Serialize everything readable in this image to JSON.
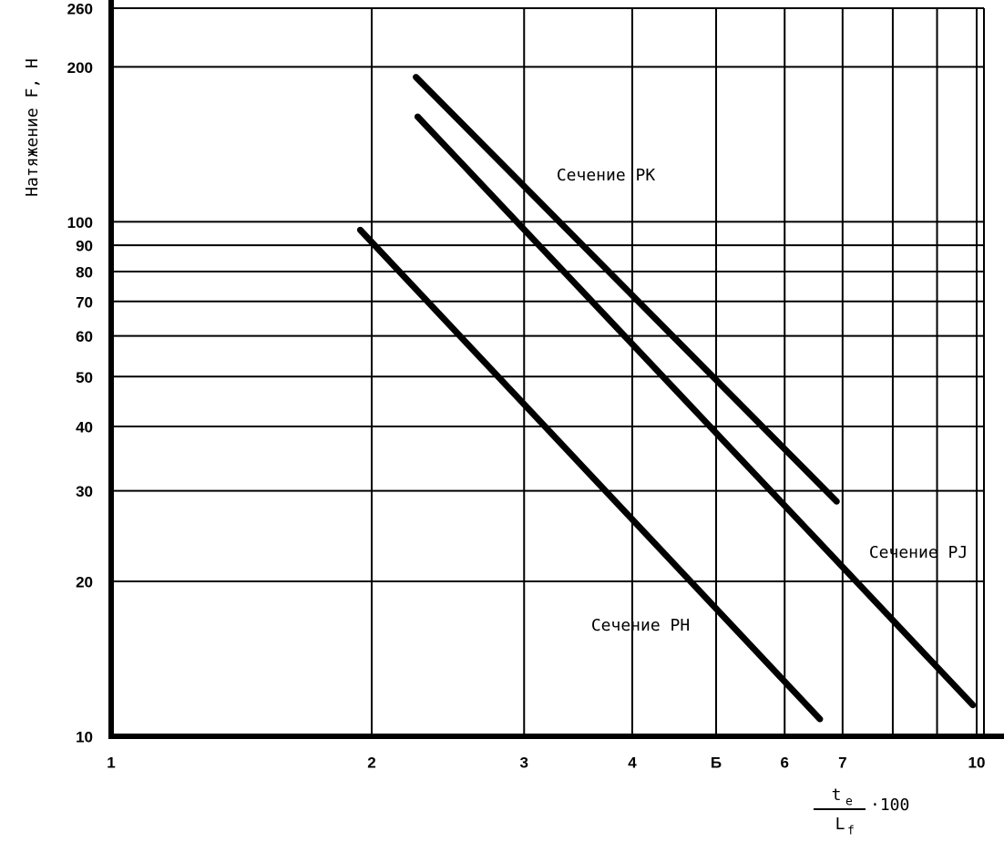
{
  "chart_data": {
    "type": "line",
    "y_label": "Натяжение F, Н",
    "x_label": {
      "numerator": "t",
      "numerator_sub": "e",
      "denominator": "L",
      "denominator_sub": "f",
      "suffix": "·100"
    },
    "log_x": true,
    "log_y": true,
    "grid": true,
    "xlim": [
      1,
      10
    ],
    "ylim": [
      10,
      260
    ],
    "xticks": [
      1,
      2,
      3,
      4,
      {
        "value": 5,
        "label": "Б"
      },
      6,
      7,
      10
    ],
    "x_minor_grid": [
      8,
      9
    ],
    "yticks": [
      10,
      20,
      30,
      40,
      50,
      60,
      70,
      80,
      90,
      100,
      200,
      260
    ],
    "series": [
      {
        "name": "Сечение PK",
        "color": "#000000",
        "x": [
          2.25,
          6.89
        ],
        "values": [
          191,
          28.6
        ]
      },
      {
        "name": "Сечение PJ",
        "color": "#000000",
        "x": [
          2.26,
          9.9
        ],
        "values": [
          160,
          11.5
        ]
      },
      {
        "name": "Сечение PH",
        "color": "#000000",
        "x": [
          1.94,
          6.59
        ],
        "values": [
          96.4,
          10.8
        ]
      }
    ]
  }
}
